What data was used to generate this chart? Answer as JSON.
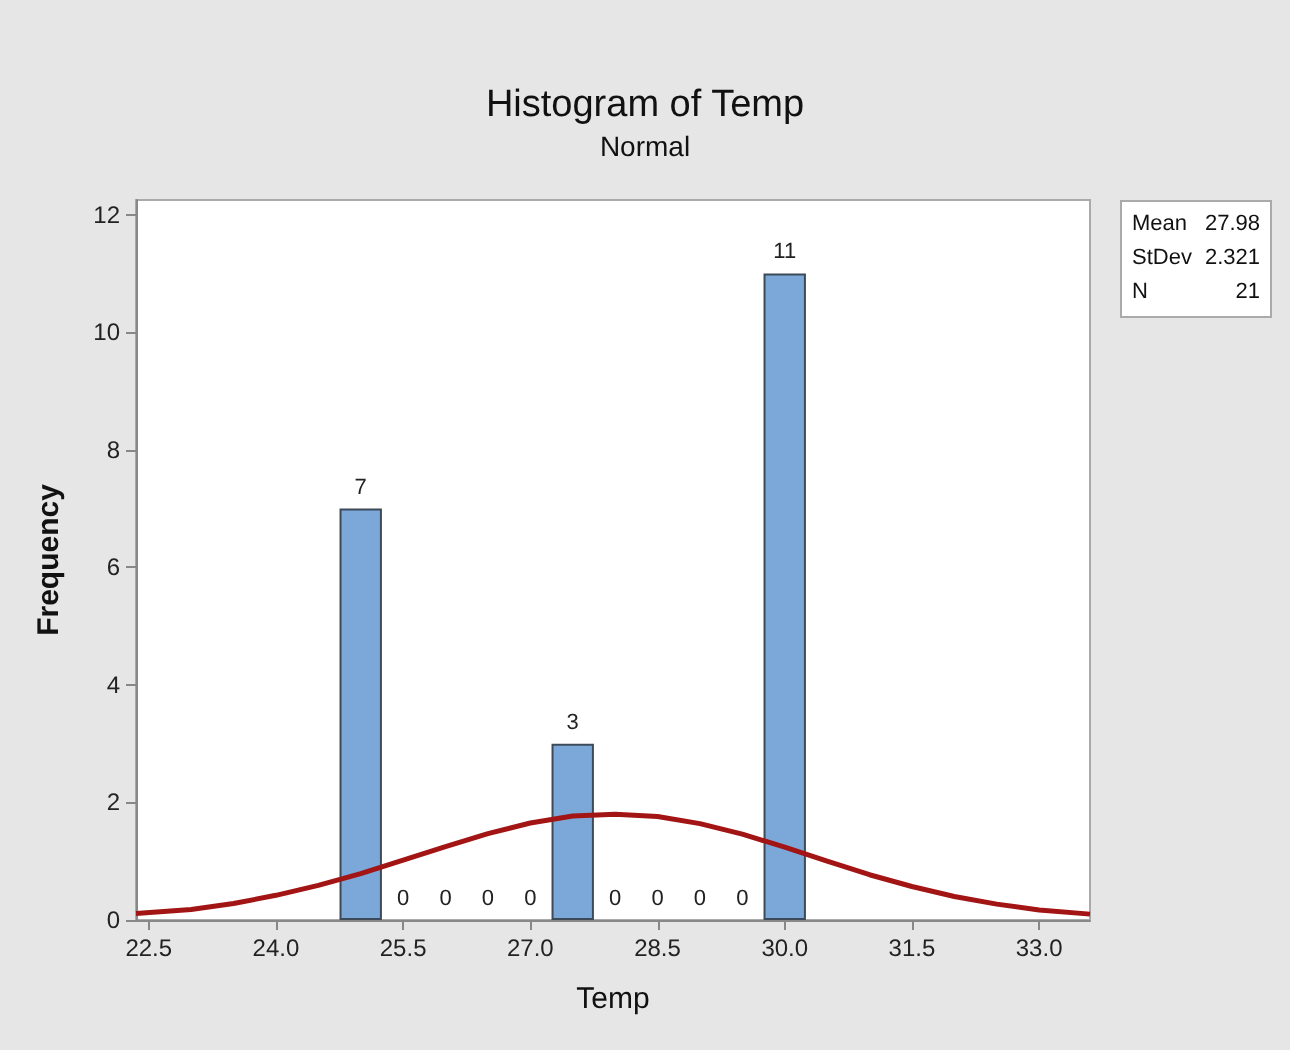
{
  "chart_data": {
    "type": "histogram",
    "title": "Histogram of Temp",
    "subtitle": "Normal",
    "xlabel": "Temp",
    "ylabel": "Frequency",
    "bins": [
      24.75,
      25.25,
      25.75,
      26.25,
      26.75,
      27.25,
      27.75,
      28.25,
      28.75,
      29.25,
      29.75,
      30.25
    ],
    "values": [
      7,
      0,
      0,
      0,
      0,
      3,
      0,
      0,
      0,
      0,
      11
    ],
    "color": "#7ba7d9",
    "value_labels": [
      "7",
      "0",
      "0",
      "0",
      "0",
      "3",
      "0",
      "0",
      "0",
      "0",
      "11"
    ],
    "series": [
      {
        "type": "line",
        "color": "#a31515",
        "x": [
          22.35,
          23.0,
          23.5,
          24.0,
          24.5,
          25.0,
          25.5,
          26.0,
          26.5,
          27.0,
          27.5,
          28.0,
          28.5,
          29.0,
          29.5,
          30.0,
          30.5,
          31.0,
          31.5,
          32.0,
          32.5,
          33.0,
          33.6
        ],
        "values": [
          0.11,
          0.18,
          0.28,
          0.42,
          0.59,
          0.79,
          1.02,
          1.25,
          1.47,
          1.65,
          1.77,
          1.8,
          1.76,
          1.64,
          1.46,
          1.24,
          1.0,
          0.77,
          0.57,
          0.4,
          0.27,
          0.17,
          0.1
        ]
      }
    ],
    "xlim": [
      22.35,
      33.6
    ],
    "xticks": [
      {
        "value": 22.5,
        "label": "22.5"
      },
      {
        "value": 24,
        "label": "24.0"
      },
      {
        "value": 25.5,
        "label": "25.5"
      },
      {
        "value": 27,
        "label": "27.0"
      },
      {
        "value": 28.5,
        "label": "28.5"
      },
      {
        "value": 30,
        "label": "30.0"
      },
      {
        "value": 31.5,
        "label": "31.5"
      },
      {
        "value": 33,
        "label": "33.0"
      }
    ],
    "ylim": [
      0,
      12.25
    ],
    "yticks": [
      0,
      2,
      4,
      6,
      8,
      10,
      12
    ],
    "grid": false,
    "annotations": [
      "Mean 27.98",
      "StDev 2.321",
      "N 21"
    ]
  }
}
